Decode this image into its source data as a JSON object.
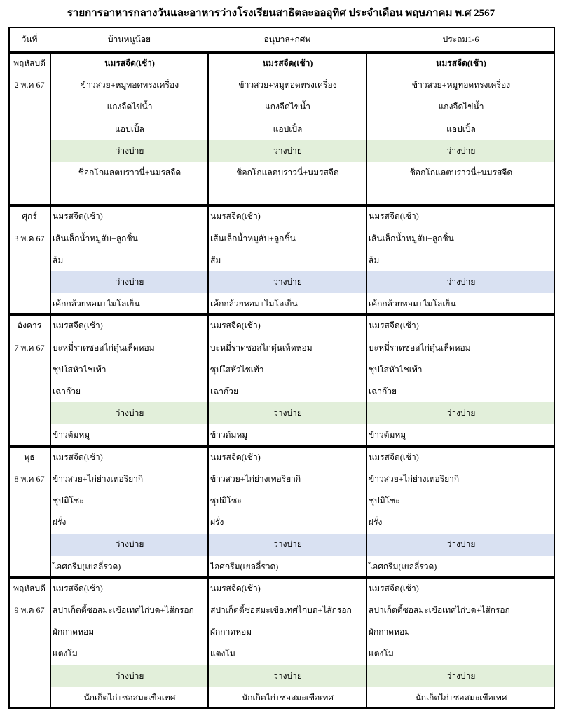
{
  "title": "รายการอาหารกลางวันและอาหารว่างโรงเรียนสาธิตละอออุทิศ ประจำเดือน พฤษภาคม พ.ศ 2567",
  "header": [
    "วันที่",
    "บ้านหนูน้อย",
    "อนุบาล+กศพ",
    "ประถม1-6"
  ],
  "days": [
    {
      "day": "พฤหัสบดี",
      "date": "2 พ.ค 67",
      "snack_color": "#e2efda",
      "columns": [
        [
          "นมรสจืด(เช้า)",
          "ข้าวสวย+หมูทอดทรงเครื่อง",
          "แกงจืดไข่น้ำ",
          "แอปเปิ้ล",
          "ว่างบ่าย",
          "ช็อกโกแลตบราวนี่+นมรสจืด"
        ],
        [
          "นมรสจืด(เช้า)",
          "ข้าวสวย+หมูทอดทรงเครื่อง",
          "แกงจืดไข่น้ำ",
          "แอปเปิ้ล",
          "ว่างบ่าย",
          "ช็อกโกแลตบราวนี่+นมรสจืด"
        ],
        [
          "นมรสจืด(เช้า)",
          "ข้าวสวย+หมูทอดทรงเครื่อง",
          "แกงจืดไข่น้ำ",
          "แอปเปิ้ล",
          "ว่างบ่าย",
          "ช็อกโกแลตบราวนี่+นมรสจืด"
        ]
      ]
    },
    {
      "day": "ศุกร์",
      "date": "3 พ.ค 67",
      "snack_color": "#d9e1f2",
      "columns": [
        [
          "นมรสจืด(เช้า)",
          "เส้นเล็กน้ำหมูสับ+ลูกชิ้น",
          "ส้ม",
          "ว่างบ่าย",
          "เค้กกล้วยหอม+ไมโลเย็น"
        ],
        [
          "นมรสจืด(เช้า)",
          "เส้นเล็กน้ำหมูสับ+ลูกชิ้น",
          "ส้ม",
          "ว่างบ่าย",
          "เค้กกล้วยหอม+ไมโลเย็น"
        ],
        [
          "นมรสจืด(เช้า)",
          "เส้นเล็กน้ำหมูสับ+ลูกชิ้น",
          "ส้ม",
          "ว่างบ่าย",
          "เค้กกล้วยหอม+ไมโลเย็น"
        ]
      ]
    },
    {
      "day": "อังคาร",
      "date": "7 พ.ค 67",
      "snack_color": "#e2efda",
      "columns": [
        [
          "นมรสจืด(เช้า)",
          "บะหมี่ราดซอสไก่ตุ๋นเห็ดหอม",
          "ซุปใสหัวไชเท้า",
          "เฉาก๊วย",
          "ว่างบ่าย",
          "ข้าวต้มหมู"
        ],
        [
          "นมรสจืด(เช้า)",
          "บะหมี่ราดซอสไก่ตุ๋นเห็ดหอม",
          "ซุปใสหัวไชเท้า",
          "เฉาก๊วย",
          "ว่างบ่าย",
          "ข้าวต้มหมู"
        ],
        [
          "นมรสจืด(เช้า)",
          "บะหมี่ราดซอสไก่ตุ๋นเห็ดหอม",
          "ซุปใสหัวไชเท้า",
          "เฉาก๊วย",
          "ว่างบ่าย",
          "ข้าวต้มหมู"
        ]
      ]
    },
    {
      "day": "พุธ",
      "date": "8 พ.ค 67",
      "snack_color": "#d9e1f2",
      "columns": [
        [
          "นมรสจืด(เช้า)",
          "ข้าวสวย+ไก่ย่างเทอริยากิ",
          "ซุปมิโซะ",
          "ฝรั่ง",
          "ว่างบ่าย",
          "ไอศกรีม(เยลลี่รวด)"
        ],
        [
          "นมรสจืด(เช้า)",
          "ข้าวสวย+ไก่ย่างเทอริยากิ",
          "ซุปมิโซะ",
          "ฝรั่ง",
          "ว่างบ่าย",
          "ไอศกรีม(เยลลี่รวด)"
        ],
        [
          "นมรสจืด(เช้า)",
          "ข้าวสวย+ไก่ย่างเทอริยากิ",
          "ซุปมิโซะ",
          "ฝรั่ง",
          "ว่างบ่าย",
          "ไอศกรีม(เยลลี่รวด)"
        ]
      ]
    },
    {
      "day": "พฤหัสบดี",
      "date": "9 พ.ค 67",
      "snack_color": "#e2efda",
      "columns": [
        [
          "นมรสจืด(เช้า)",
          "สปาเก็ตตี้ซอสมะเขือเทศไก่บด+ไส้กรอก",
          "ผักกาดหอม",
          "แตงโม",
          "ว่างบ่าย",
          "นักเก็ตไก่+ซอสมะเขือเทศ"
        ],
        [
          "นมรสจืด(เช้า)",
          "สปาเก็ตตี้ซอสมะเขือเทศไก่บด+ไส้กรอก",
          "ผักกาดหอม",
          "แตงโม",
          "ว่างบ่าย",
          "นักเก็ตไก่+ซอสมะเขือเทศ"
        ],
        [
          "นมรสจืด(เช้า)",
          "สปาเก็ตตี้ซอสมะเขือเทศไก่บด+ไส้กรอก",
          "ผักกาดหอม",
          "แตงโม",
          "ว่างบ่าย",
          "นักเก็ตไก่+ซอสมะเขือเทศ"
        ]
      ]
    }
  ]
}
